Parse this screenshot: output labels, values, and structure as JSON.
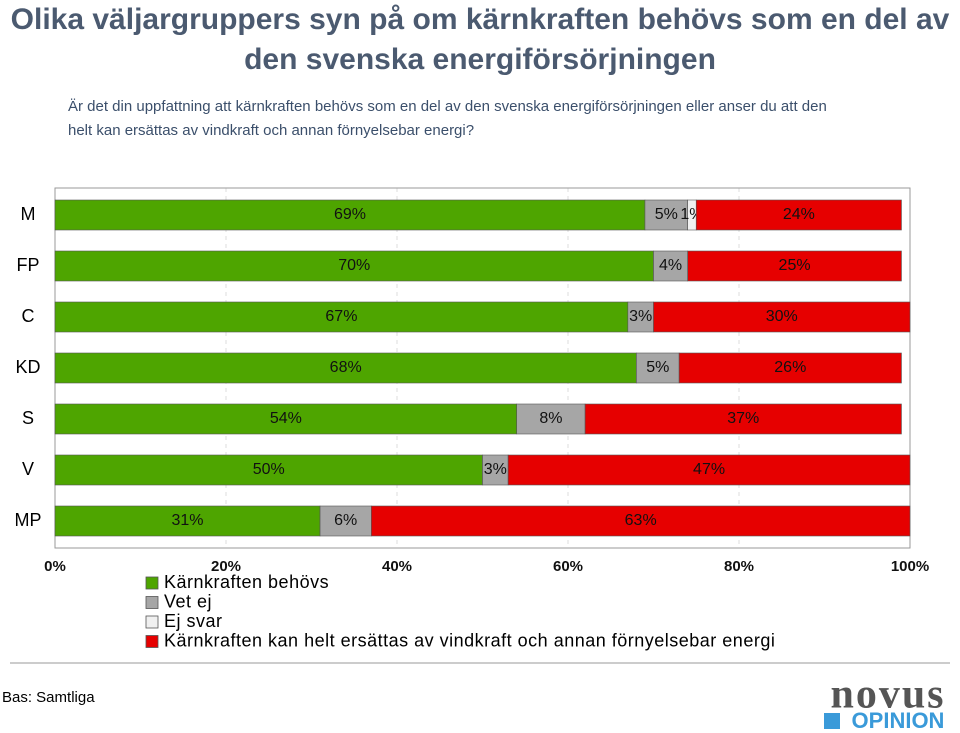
{
  "chart_data": {
    "type": "stacked-bar-horizontal",
    "title": "Olika väljargruppers syn på om kärnkraften behövs som en del av den svenska energiförsörjningen",
    "subtitle": "Är det din uppfattning att kärnkraften behövs som en del av den svenska energiförsörjningen eller anser du att den helt kan ersättas av vindkraft och annan förnyelsebar energi?",
    "categories": [
      "M",
      "FP",
      "C",
      "KD",
      "S",
      "V",
      "MP"
    ],
    "series": [
      {
        "name": "Kärnkraften behövs",
        "color": "#4ea500",
        "values": [
          69,
          70,
          67,
          68,
          54,
          50,
          31
        ],
        "value_labels": [
          "69%",
          "70%",
          "67%",
          "68%",
          "54%",
          "50%",
          "31%"
        ]
      },
      {
        "name": "Vet ej",
        "color": "#a6a6a6",
        "values": [
          5,
          4,
          3,
          5,
          8,
          3,
          6
        ],
        "value_labels": [
          "5%",
          "4%",
          "3%",
          "5%",
          "8%",
          "3%",
          "6%"
        ]
      },
      {
        "name": "Ej svar",
        "color": "#f0f0f0",
        "values": [
          1,
          null,
          null,
          null,
          null,
          null,
          null
        ],
        "value_labels": [
          "1%",
          null,
          null,
          null,
          null,
          null,
          null
        ]
      },
      {
        "name": "Kärnkraften kan helt ersättas av vindkraft och annan förnyelsebar energi",
        "color": "#e60000",
        "values": [
          24,
          25,
          30,
          26,
          37,
          47,
          63
        ],
        "value_labels": [
          "24%",
          "25%",
          "30%",
          "26%",
          "37%",
          "47%",
          "63%"
        ]
      }
    ],
    "xlim": [
      0,
      100
    ],
    "xticks": [
      {
        "value": 0,
        "label": "0%"
      },
      {
        "value": 20,
        "label": "20%"
      },
      {
        "value": 40,
        "label": "40%"
      },
      {
        "value": 60,
        "label": "60%"
      },
      {
        "value": 80,
        "label": "80%"
      },
      {
        "value": 100,
        "label": "100%"
      }
    ],
    "grid": true,
    "footnote": "Bas: Samtliga",
    "logo": {
      "top": "novus",
      "bottom": "OPINION"
    }
  }
}
